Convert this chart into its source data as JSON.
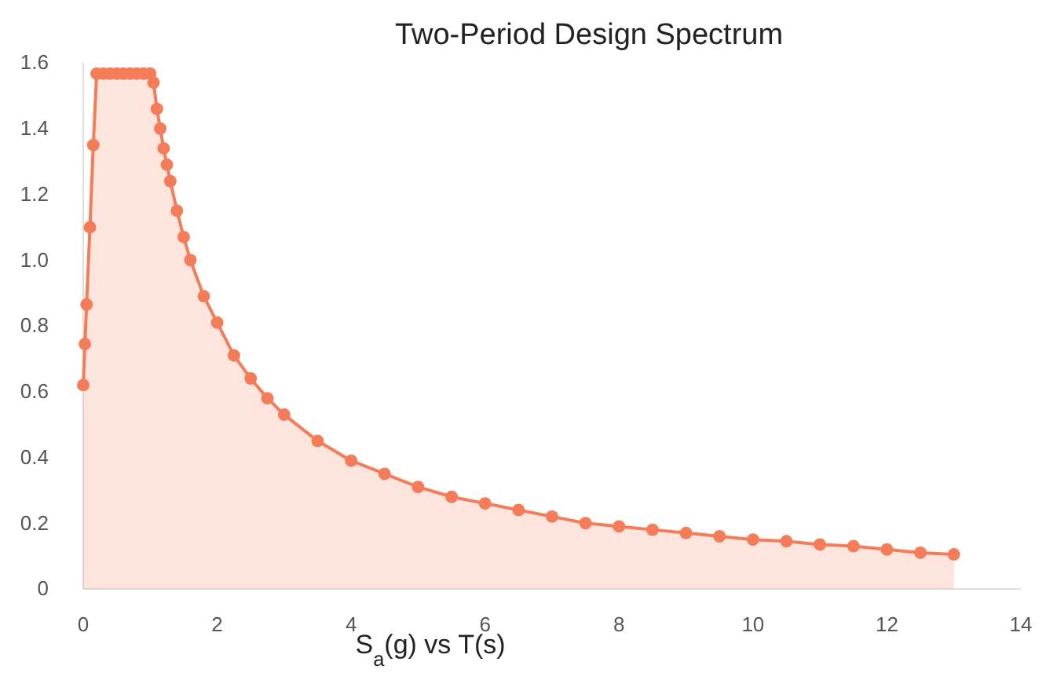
{
  "chart_data": {
    "type": "area",
    "title": "Two-Period Design Spectrum",
    "xlabel": "S$_{a}$(g) vs T(s)",
    "x": [
      0,
      0.025,
      0.05,
      0.1,
      0.15,
      0.2,
      0.3,
      0.4,
      0.5,
      0.6,
      0.7,
      0.8,
      0.9,
      1.0,
      1.05,
      1.1,
      1.15,
      1.2,
      1.25,
      1.3,
      1.4,
      1.5,
      1.6,
      1.8,
      2.0,
      2.25,
      2.5,
      2.75,
      3,
      3.5,
      4,
      4.5,
      5,
      5.5,
      6,
      6.5,
      7,
      7.5,
      8,
      8.5,
      9,
      9.5,
      10,
      10.5,
      11,
      11.5,
      12,
      12.5,
      13
    ],
    "series": [
      {
        "color": "#f47c58",
        "values": [
          0.62,
          0.745,
          0.865,
          1.1,
          1.35,
          1.567,
          1.567,
          1.567,
          1.567,
          1.567,
          1.567,
          1.567,
          1.567,
          1.567,
          1.54,
          1.46,
          1.4,
          1.34,
          1.29,
          1.24,
          1.15,
          1.07,
          1.0,
          0.89,
          0.81,
          0.71,
          0.64,
          0.58,
          0.53,
          0.45,
          0.39,
          0.35,
          0.31,
          0.28,
          0.26,
          0.24,
          0.22,
          0.2,
          0.19,
          0.18,
          0.17,
          0.16,
          0.15,
          0.145,
          0.135,
          0.13,
          0.12,
          0.11,
          0.105
        ]
      }
    ],
    "xlim": [
      0,
      14
    ],
    "xticks": [
      0,
      2,
      4,
      6,
      8,
      10,
      12,
      14
    ],
    "ylim": [
      0,
      1.6
    ],
    "yticks": [
      0,
      0.2,
      0.4,
      0.6,
      0.8,
      {
        "value": 1,
        "label": "1.0"
      },
      1.2,
      1.4,
      1.6
    ],
    "marker": "circle",
    "grid": false
  }
}
